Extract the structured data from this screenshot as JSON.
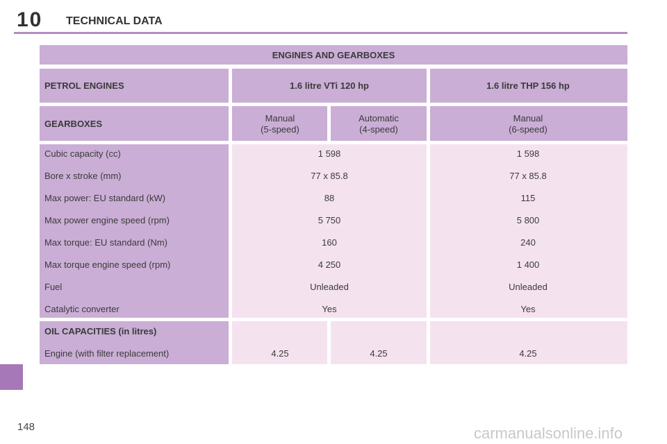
{
  "header": {
    "chapter": "10",
    "title": "TECHNICAL DATA"
  },
  "table": {
    "title": "ENGINES AND GEARBOXES",
    "engine_row": {
      "label": "PETROL ENGINES",
      "engines": [
        "1.6 litre VTi 120 hp",
        "1.6 litre THP 156 hp"
      ]
    },
    "gearbox_row": {
      "label": "GEARBOXES",
      "gearboxes": [
        [
          "Manual",
          "(5-speed)"
        ],
        [
          "Automatic",
          "(4-speed)"
        ],
        [
          "Manual",
          "(6-speed)"
        ]
      ]
    },
    "rows": [
      [
        "Cubic capacity (cc)",
        "1 598",
        "1 598"
      ],
      [
        "Bore x stroke (mm)",
        "77 x 85.8",
        "77 x 85.8"
      ],
      [
        "Max power: EU standard (kW)",
        "88",
        "115"
      ],
      [
        "Max power engine speed (rpm)",
        "5 750",
        "5 800"
      ],
      [
        "Max torque: EU standard (Nm)",
        "160",
        "240"
      ],
      [
        "Max torque engine speed (rpm)",
        "4 250",
        "1 400"
      ],
      [
        "Fuel",
        "Unleaded",
        "Unleaded"
      ],
      [
        "Catalytic converter",
        "Yes",
        "Yes"
      ]
    ],
    "oil": {
      "label": "OIL CAPACITIES (in litres)",
      "row": [
        "Engine (with filter replacement)",
        "4.25",
        "4.25",
        "4.25"
      ]
    }
  },
  "page_number": "148",
  "watermark": "carmanualsonline.info"
}
